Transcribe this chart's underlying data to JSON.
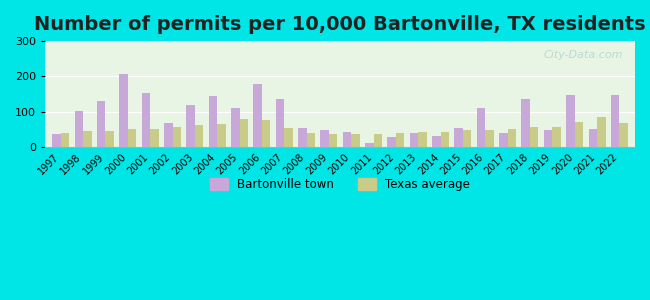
{
  "title": "Number of permits per 10,000 Bartonville, TX residents",
  "years": [
    1997,
    1998,
    1999,
    2000,
    2001,
    2002,
    2003,
    2004,
    2005,
    2006,
    2007,
    2008,
    2009,
    2010,
    2011,
    2012,
    2013,
    2014,
    2015,
    2016,
    2017,
    2018,
    2019,
    2020,
    2021,
    2022
  ],
  "bartonville": [
    35,
    103,
    130,
    208,
    152,
    68,
    120,
    145,
    110,
    178,
    136,
    52,
    47,
    43,
    10,
    28,
    38,
    30,
    52,
    110,
    38,
    137,
    47,
    148,
    50,
    148
  ],
  "texas_avg": [
    38,
    45,
    45,
    50,
    50,
    56,
    62,
    65,
    78,
    75,
    52,
    40,
    35,
    35,
    35,
    40,
    42,
    42,
    48,
    48,
    50,
    55,
    55,
    70,
    85,
    68
  ],
  "bartonville_color": "#c8a8d8",
  "texas_color": "#c8cc88",
  "background_outer": "#00e5e5",
  "background_plot_top": "#e8f5e8",
  "background_plot_bottom": "#f0ffe8",
  "ylim": [
    0,
    300
  ],
  "yticks": [
    0,
    100,
    200,
    300
  ],
  "title_fontsize": 14,
  "bar_width": 0.38,
  "legend_bartonville": "Bartonville town",
  "legend_texas": "Texas average"
}
